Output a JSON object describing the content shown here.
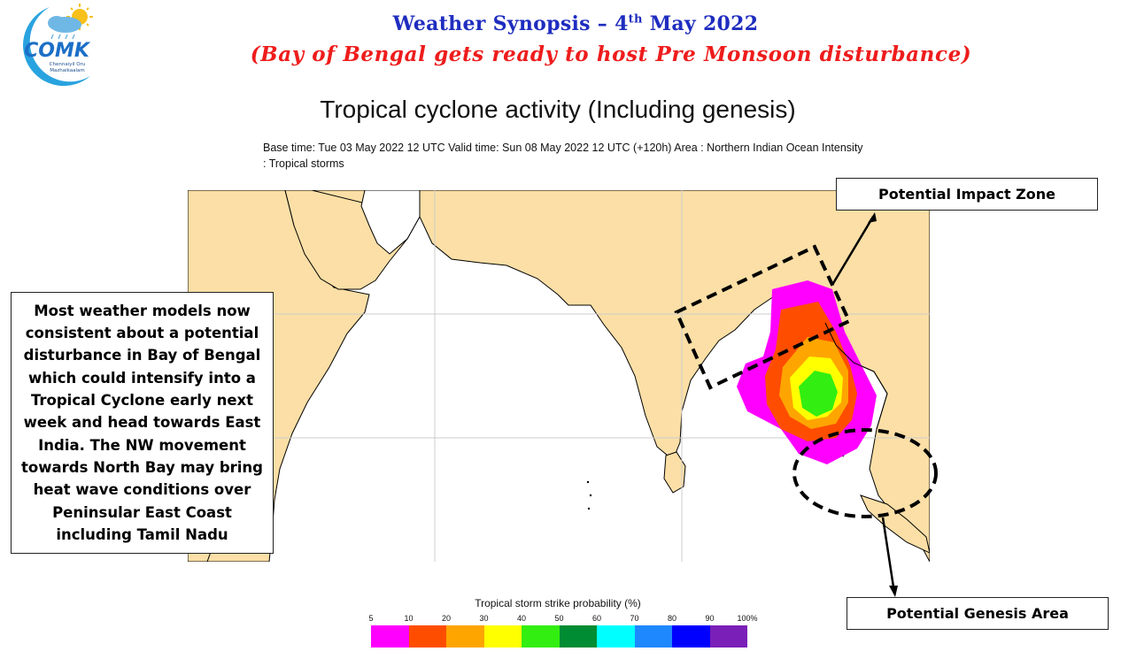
{
  "header": {
    "title_main": "Weather Synopsis – 4",
    "title_sup": "th",
    "title_date": " May 2022",
    "subtitle": "(Bay of Bengal gets ready to host Pre Monsoon disturbance)"
  },
  "logo": {
    "wordmark": "COMK",
    "tagline_line1": "Chennaiyil Oru",
    "tagline_line2": "Mazhaikaalam",
    "colors": {
      "moon": "#29a3e0",
      "sun": "#f7c01b",
      "cloud": "#6fb8e6",
      "wordmark": "#1c6fc7"
    }
  },
  "chart": {
    "title": "Tropical cyclone activity (Including genesis)",
    "meta_line1": "Base time: Tue 03 May 2022 12 UTC Valid time: Sun 08 May 2022 12 UTC (+120h) Area : Northern Indian Ocean Intensity",
    "meta_line2": ": Tropical storms"
  },
  "annotations": {
    "description": "Most weather models now consistent about a potential disturbance in Bay of Bengal which could intensify into a Tropical Cyclone early next week and head towards East India. The NW movement towards North Bay may bring heat wave conditions over Peninsular East Coast including Tamil Nadu",
    "impact_label": "Potential Impact Zone",
    "genesis_label": "Potential Genesis Area"
  },
  "legend": {
    "title": "Tropical storm strike probability (%)",
    "ticks": [
      "5",
      "10",
      "20",
      "30",
      "40",
      "50",
      "60",
      "70",
      "80",
      "90",
      "100%"
    ],
    "colors": [
      "#ff00ff",
      "#ff4d00",
      "#ffa500",
      "#ffff00",
      "#33ee11",
      "#008c33",
      "#00ffff",
      "#1e88ff",
      "#0000ff",
      "#7a1fb8"
    ]
  },
  "map_colors": {
    "land": "#fbdfa6",
    "ocean": "#ffffff",
    "coast": "#000000",
    "grid": "#cccccc"
  }
}
